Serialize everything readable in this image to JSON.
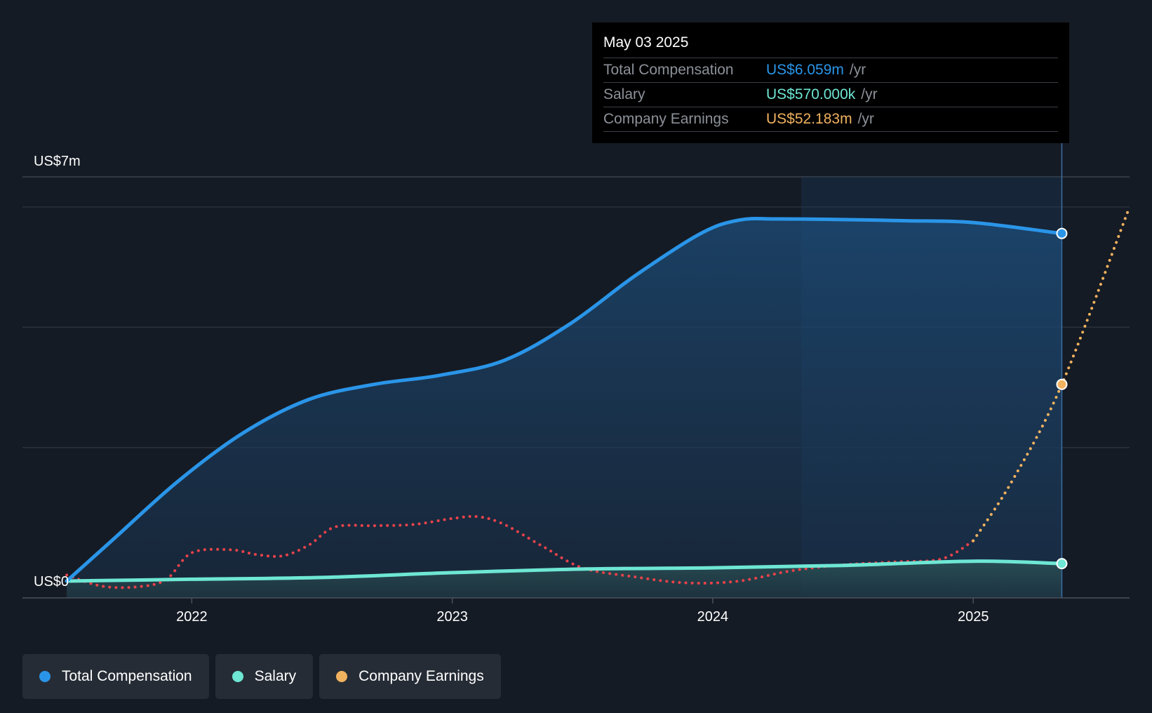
{
  "tooltip": {
    "date": "May 03 2025",
    "rows": [
      {
        "label": "Total Compensation",
        "value": "US$6.059m",
        "unit": "/yr",
        "color": "#2a95e8"
      },
      {
        "label": "Salary",
        "value": "US$570.000k",
        "unit": "/yr",
        "color": "#6ee7d4"
      },
      {
        "label": "Company Earnings",
        "value": "US$52.183m",
        "unit": "/yr",
        "color": "#f1b25f"
      }
    ]
  },
  "legend": [
    {
      "label": "Total Compensation",
      "color": "#2a95e8"
    },
    {
      "label": "Salary",
      "color": "#6ee7d4"
    },
    {
      "label": "Company Earnings",
      "color": "#f1b25f"
    }
  ],
  "chart_data": {
    "type": "area",
    "title": "",
    "y_axis_labels": [
      "US$7m",
      "US$0"
    ],
    "ylim": [
      0,
      7
    ],
    "xlim": [
      2021.35,
      2025.6
    ],
    "xticks": [
      2022,
      2023,
      2024,
      2025
    ],
    "xtick_labels": [
      "2022",
      "2023",
      "2024",
      "2025"
    ],
    "highlight_start": 2024.34,
    "tooltip_x": 2025.34,
    "series": [
      {
        "name": "Total Compensation",
        "unit": "US$m",
        "color": "#2a95e8",
        "style": "solid-area",
        "x": [
          2021.52,
          2021.7,
          2021.95,
          2022.2,
          2022.45,
          2022.7,
          2022.95,
          2023.2,
          2023.45,
          2023.7,
          2023.95,
          2024.1,
          2024.25,
          2024.5,
          2024.75,
          2025.0,
          2025.34
        ],
        "values": [
          0.28,
          0.98,
          1.95,
          2.75,
          3.3,
          3.55,
          3.7,
          3.95,
          4.55,
          5.35,
          6.05,
          6.28,
          6.3,
          6.29,
          6.27,
          6.24,
          6.059
        ]
      },
      {
        "name": "Salary",
        "unit": "US$m",
        "color": "#6ee7d4",
        "style": "solid-area",
        "x": [
          2021.52,
          2022.0,
          2022.5,
          2023.0,
          2023.5,
          2024.0,
          2024.5,
          2025.0,
          2025.34
        ],
        "values": [
          0.28,
          0.31,
          0.34,
          0.42,
          0.48,
          0.5,
          0.54,
          0.61,
          0.57
        ]
      },
      {
        "name": "Company Earnings",
        "unit": "US$m (scaled)",
        "color_negative": "#e8424a",
        "color": "#f1b25f",
        "style": "dotted",
        "x": [
          2021.52,
          2021.65,
          2021.78,
          2021.9,
          2022.0,
          2022.15,
          2022.25,
          2022.35,
          2022.45,
          2022.55,
          2022.7,
          2022.85,
          2023.0,
          2023.1,
          2023.2,
          2023.35,
          2023.5,
          2023.7,
          2023.9,
          2024.1,
          2024.3,
          2024.5,
          2024.7,
          2024.88,
          2025.0,
          2025.15,
          2025.34,
          2025.6
        ],
        "values": [
          0.38,
          0.2,
          0.18,
          0.3,
          0.75,
          0.8,
          0.72,
          0.7,
          0.88,
          1.18,
          1.2,
          1.22,
          1.32,
          1.35,
          1.22,
          0.85,
          0.5,
          0.35,
          0.25,
          0.28,
          0.45,
          0.55,
          0.6,
          0.65,
          0.95,
          1.95,
          3.55,
          6.5
        ]
      }
    ],
    "markers": [
      {
        "series": "Total Compensation",
        "x": 2025.34,
        "value": 6.059
      },
      {
        "series": "Salary",
        "x": 2025.34,
        "value": 0.57
      },
      {
        "series": "Company Earnings",
        "x": 2025.34,
        "value": 3.55
      }
    ]
  }
}
